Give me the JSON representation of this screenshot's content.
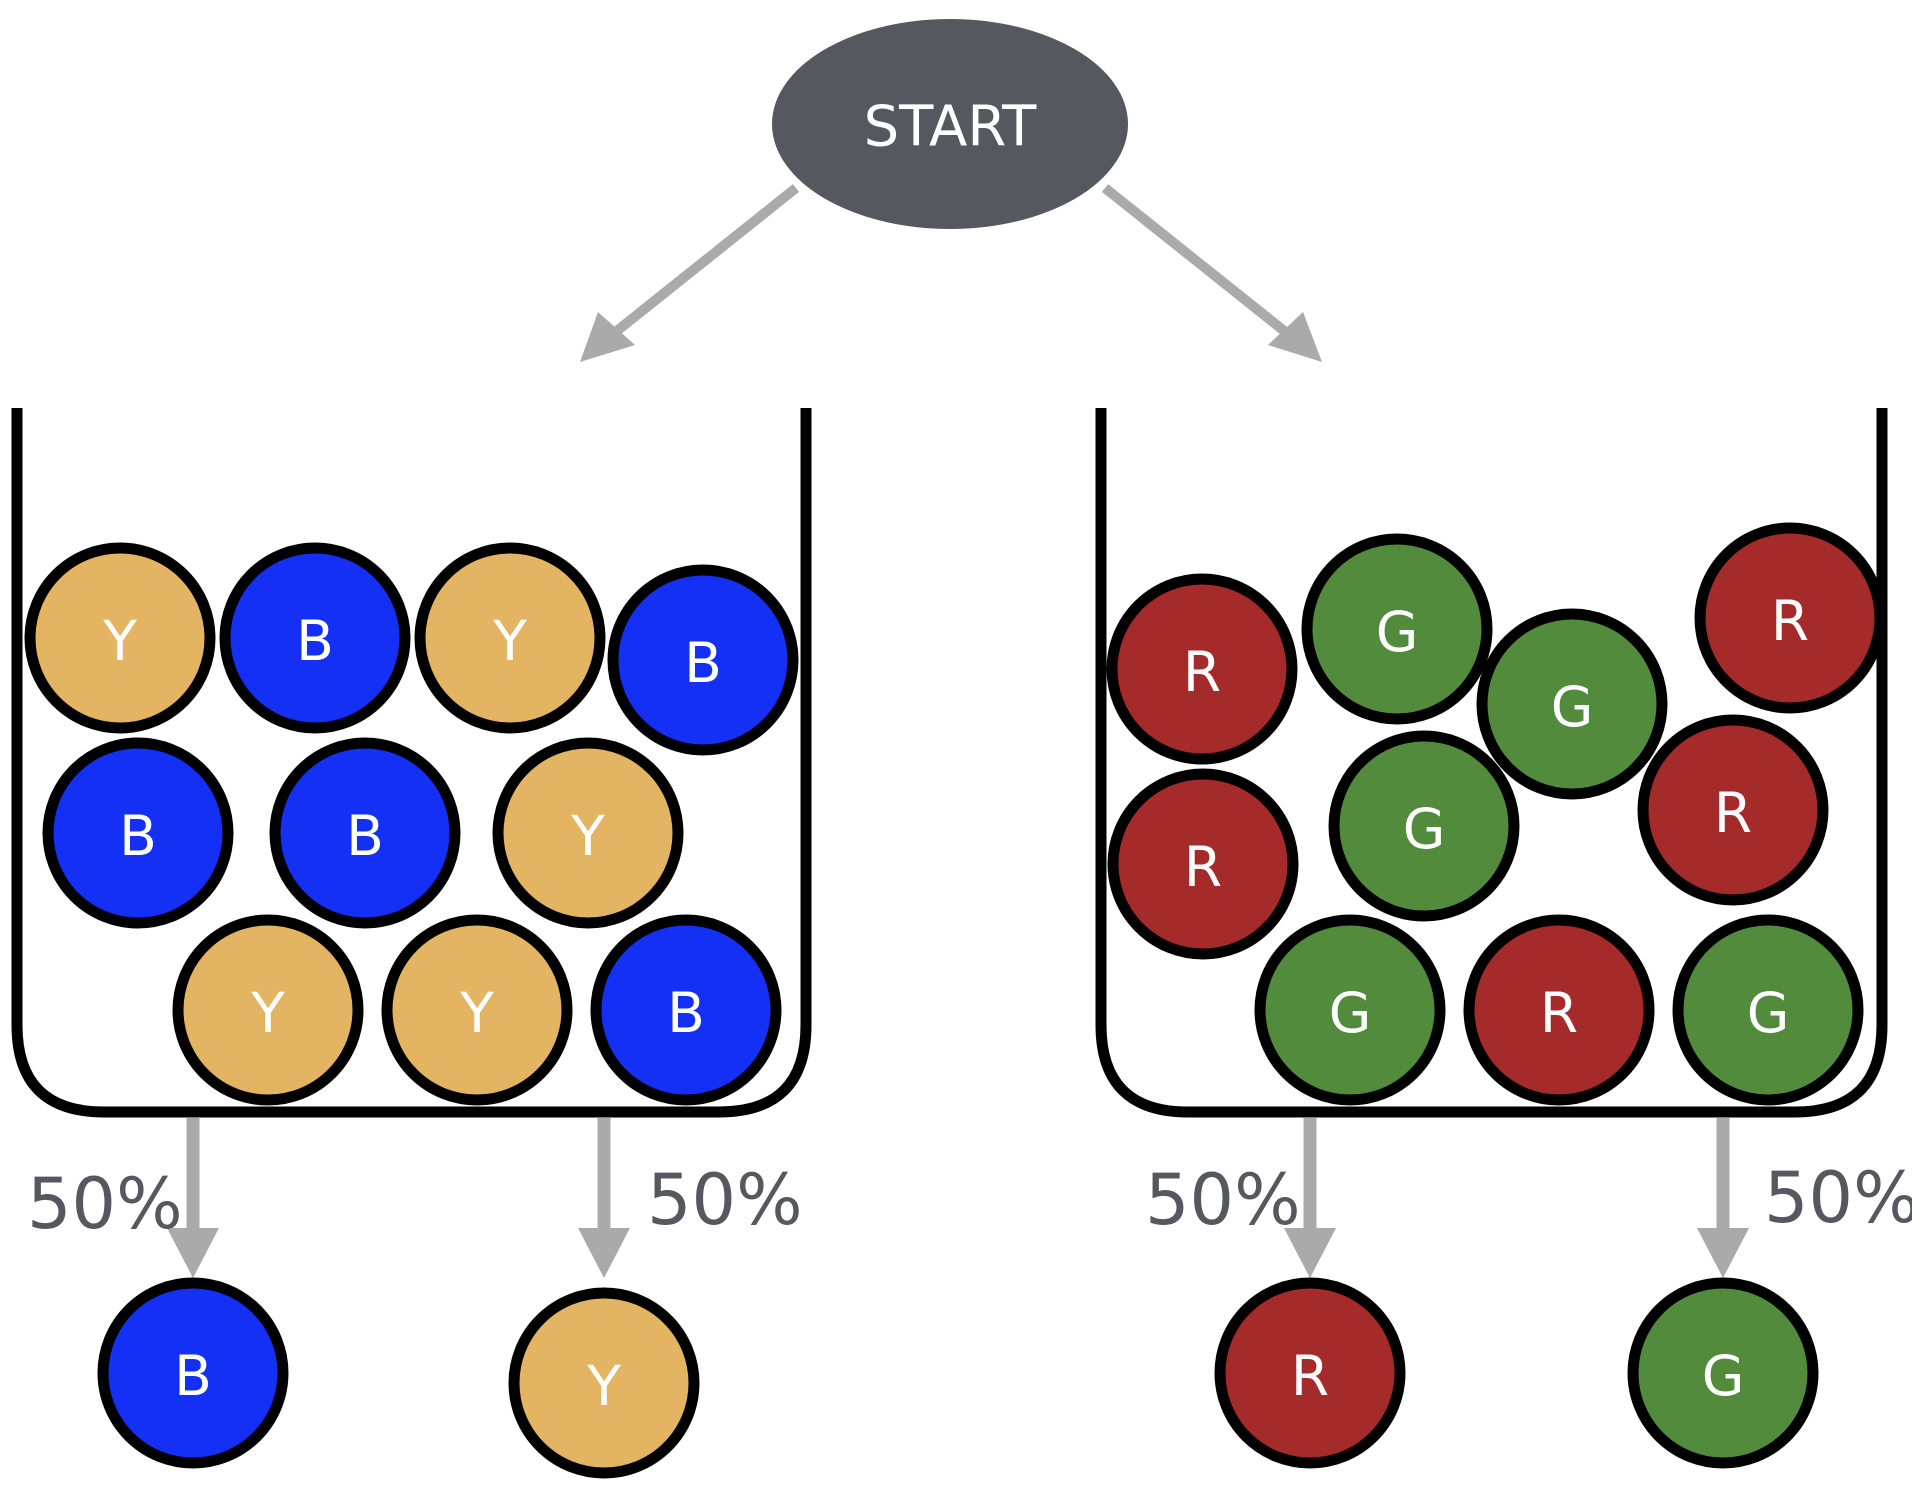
{
  "start": {
    "label": "START"
  },
  "colors": {
    "Y": "#e3b462",
    "B": "#1530f5",
    "R": "#a52a2a",
    "G": "#528b3c",
    "node": "#55595f",
    "arrow": "#aaaaaa",
    "outline": "#000000"
  },
  "jars": [
    {
      "name": "left-jar",
      "balls": [
        "Y",
        "B",
        "Y",
        "B",
        "B",
        "B",
        "Y",
        "Y",
        "Y",
        "B"
      ],
      "outcomes": [
        {
          "ball": "B",
          "percent": "50%"
        },
        {
          "ball": "Y",
          "percent": "50%"
        }
      ]
    },
    {
      "name": "right-jar",
      "balls": [
        "R",
        "G",
        "G",
        "R",
        "R",
        "G",
        "R",
        "G",
        "R",
        "G"
      ],
      "outcomes": [
        {
          "ball": "R",
          "percent": "50%"
        },
        {
          "ball": "G",
          "percent": "50%"
        }
      ]
    }
  ]
}
